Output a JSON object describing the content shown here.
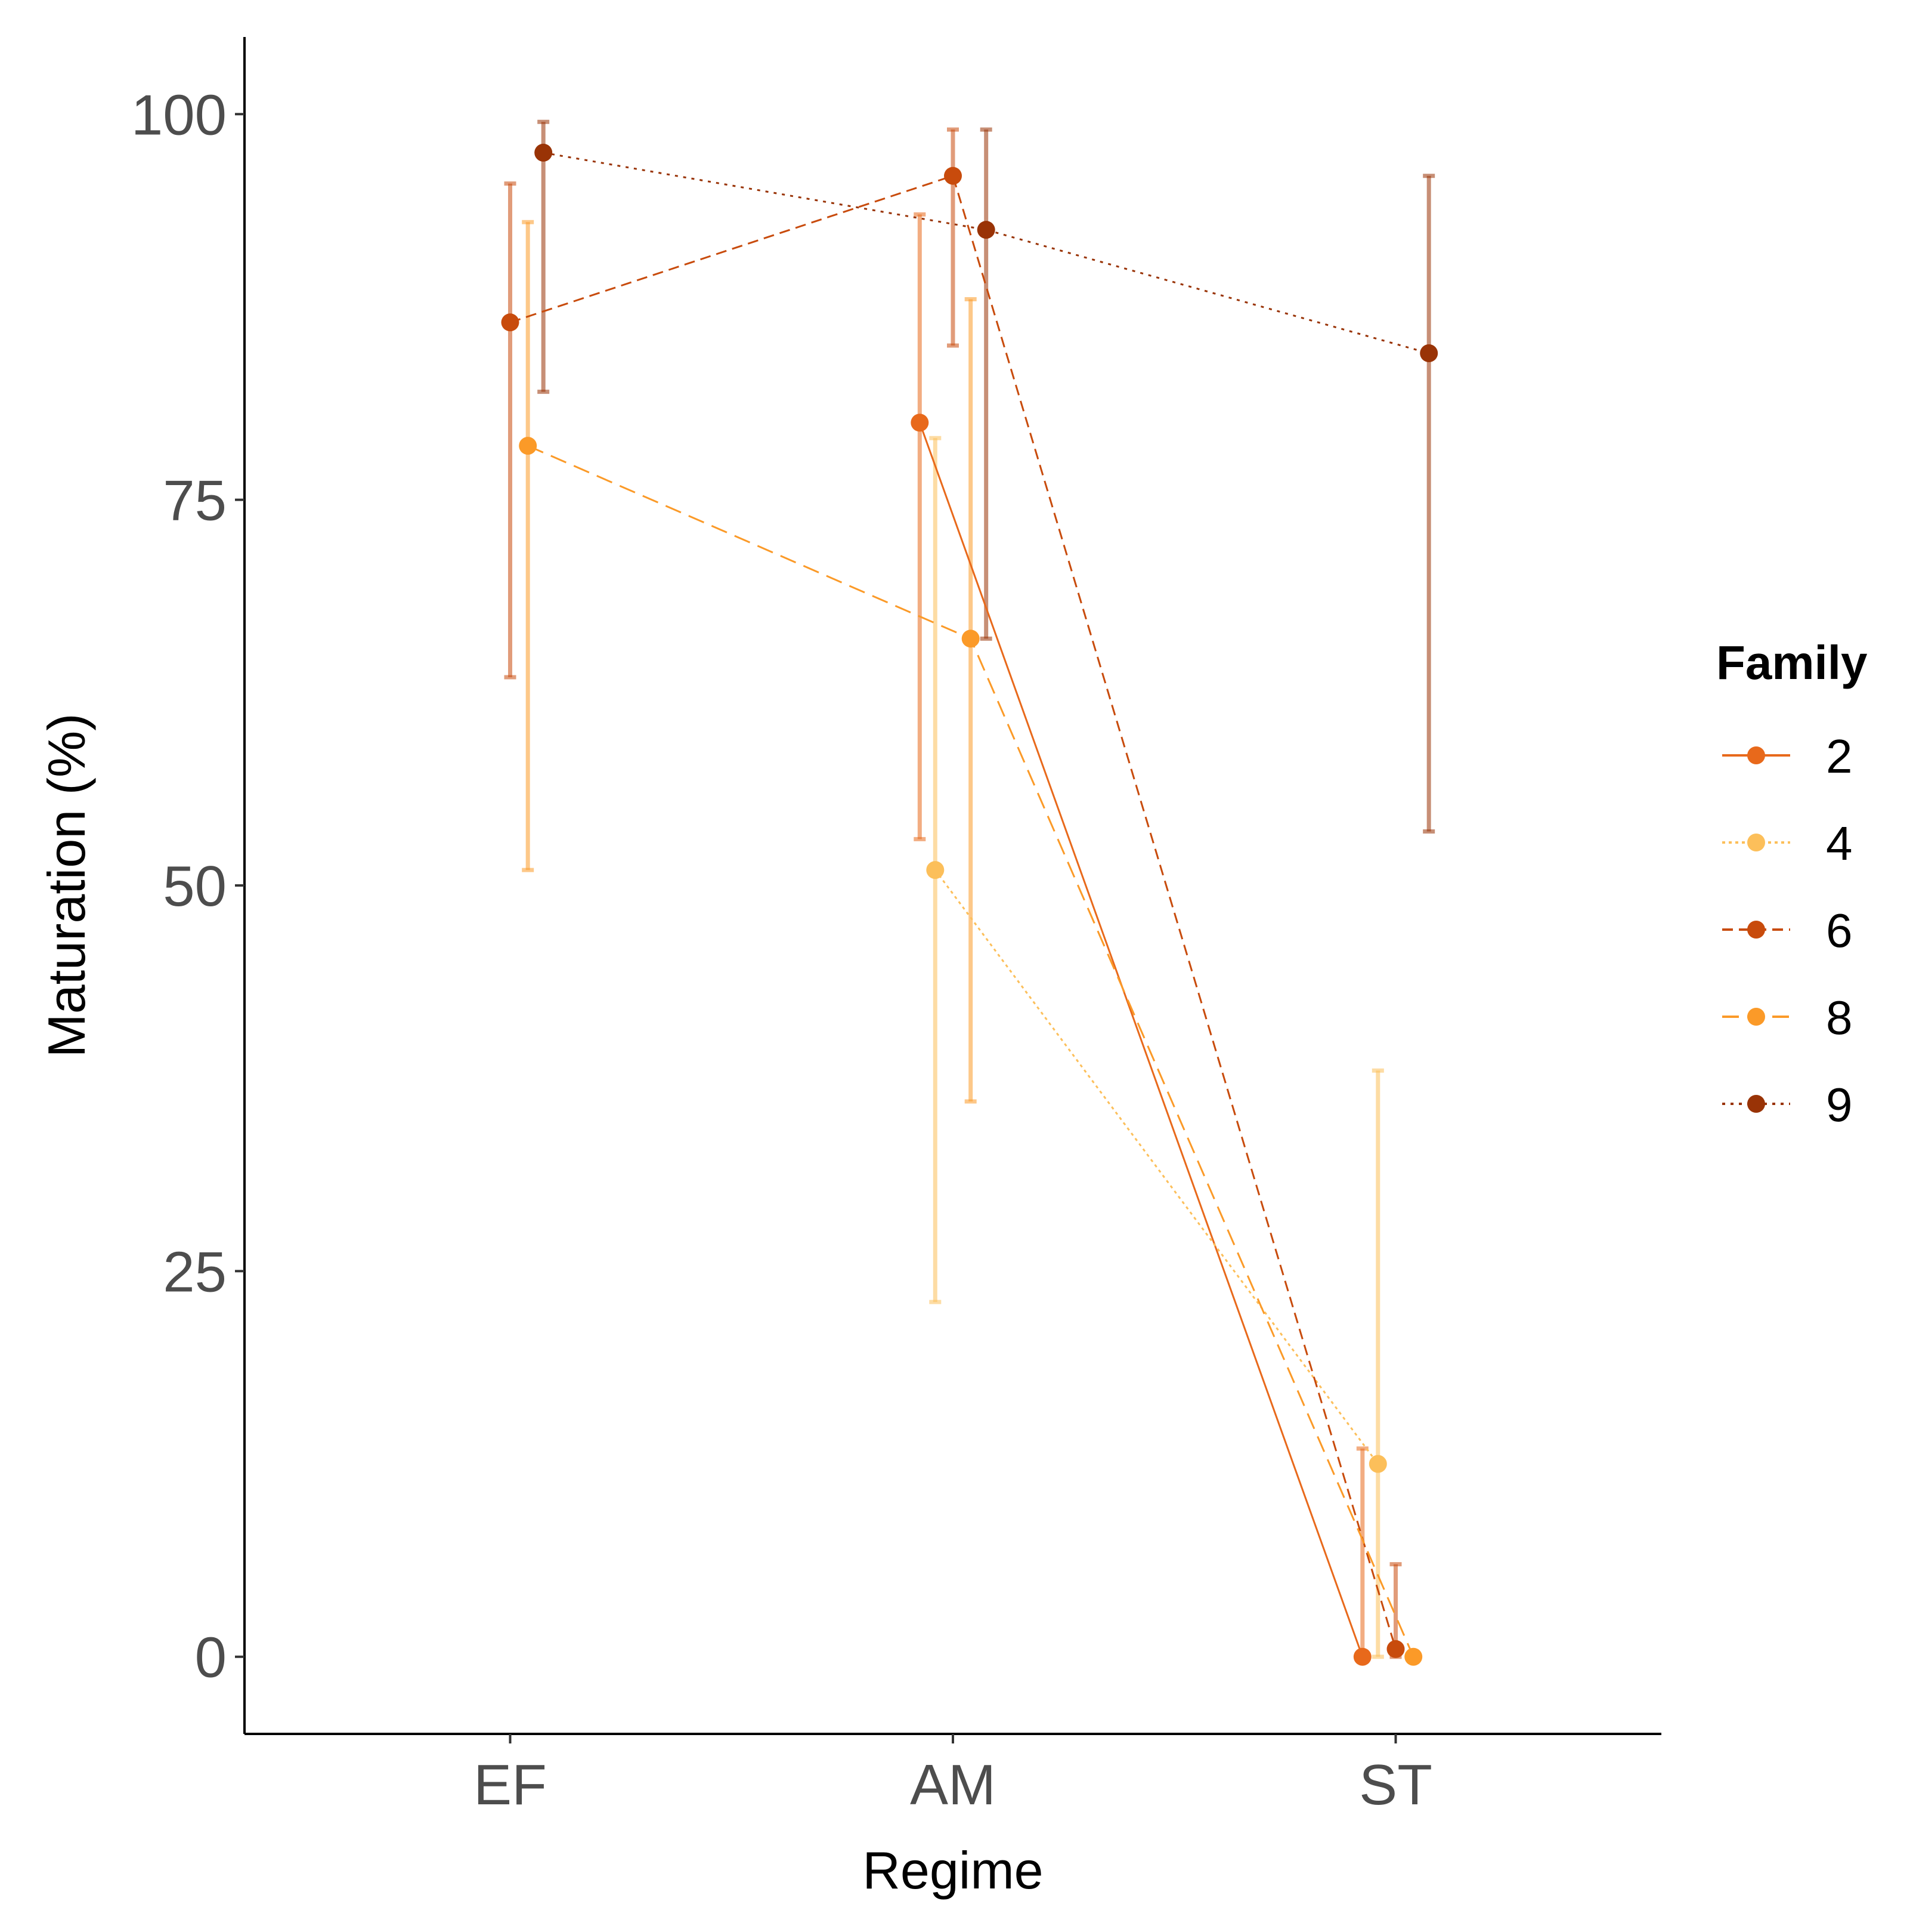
{
  "chart_data": {
    "type": "line",
    "xlabel": "Regime",
    "ylabel": "Maturation (%)",
    "categories": [
      "EF",
      "AM",
      "ST"
    ],
    "ylim": [
      -5,
      105
    ],
    "yticks": [
      0,
      25,
      50,
      75,
      100
    ],
    "grid": false,
    "legend": {
      "title": "Family",
      "position": "right"
    },
    "series": [
      {
        "name": "2",
        "color": "#e8691b",
        "linetype": "solid",
        "dodge": -0.075,
        "values": [
          null,
          80,
          0
        ],
        "errors": [
          null,
          [
            53,
            93.5
          ],
          [
            0,
            13.5
          ]
        ]
      },
      {
        "name": "4",
        "color": "#fcbf5a",
        "linetype": "dotted-dense",
        "dodge": -0.04,
        "values": [
          null,
          51,
          12.5
        ],
        "errors": [
          null,
          [
            23,
            79
          ],
          [
            0,
            38
          ]
        ]
      },
      {
        "name": "6",
        "color": "#c84b0c",
        "linetype": "dashed",
        "dodge": 0.0,
        "values": [
          86.5,
          96,
          0.5
        ],
        "errors": [
          [
            63.5,
            95.5
          ],
          [
            85,
            99
          ],
          [
            0,
            6
          ]
        ]
      },
      {
        "name": "8",
        "color": "#fb9a28",
        "linetype": "longdash",
        "dodge": 0.04,
        "values": [
          78.5,
          66,
          0
        ],
        "errors": [
          [
            51,
            93
          ],
          [
            36,
            88
          ],
          null
        ]
      },
      {
        "name": "9",
        "color": "#993306",
        "linetype": "dotted",
        "dodge": 0.075,
        "values": [
          97.5,
          92.5,
          84.5
        ],
        "errors": [
          [
            82,
            99.5
          ],
          [
            66,
            99
          ],
          [
            53.5,
            96
          ]
        ]
      }
    ]
  }
}
